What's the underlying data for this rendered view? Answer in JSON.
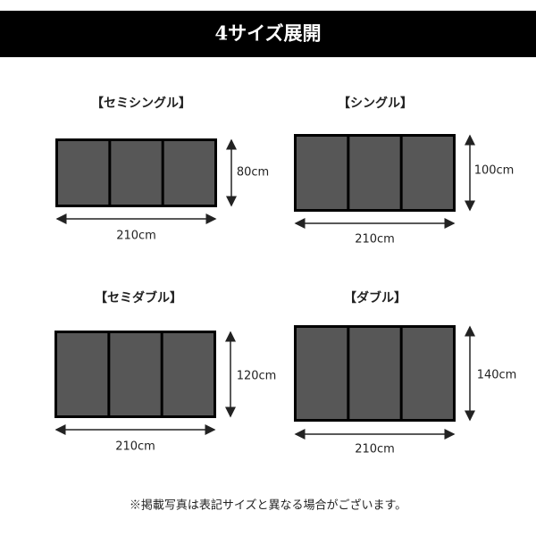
{
  "header": {
    "title": "4サイズ展開"
  },
  "items": [
    {
      "label": "【セミシングル】",
      "height": "80cm",
      "width": "210cm"
    },
    {
      "label": "【シングル】",
      "height": "100cm",
      "width": "210cm"
    },
    {
      "label": "【セミダブル】",
      "height": "120cm",
      "width": "210cm"
    },
    {
      "label": "【ダブル】",
      "height": "140cm",
      "width": "210cm"
    }
  ],
  "footnote": "※掲載写真は表記サイズと異なる場合がございます。"
}
